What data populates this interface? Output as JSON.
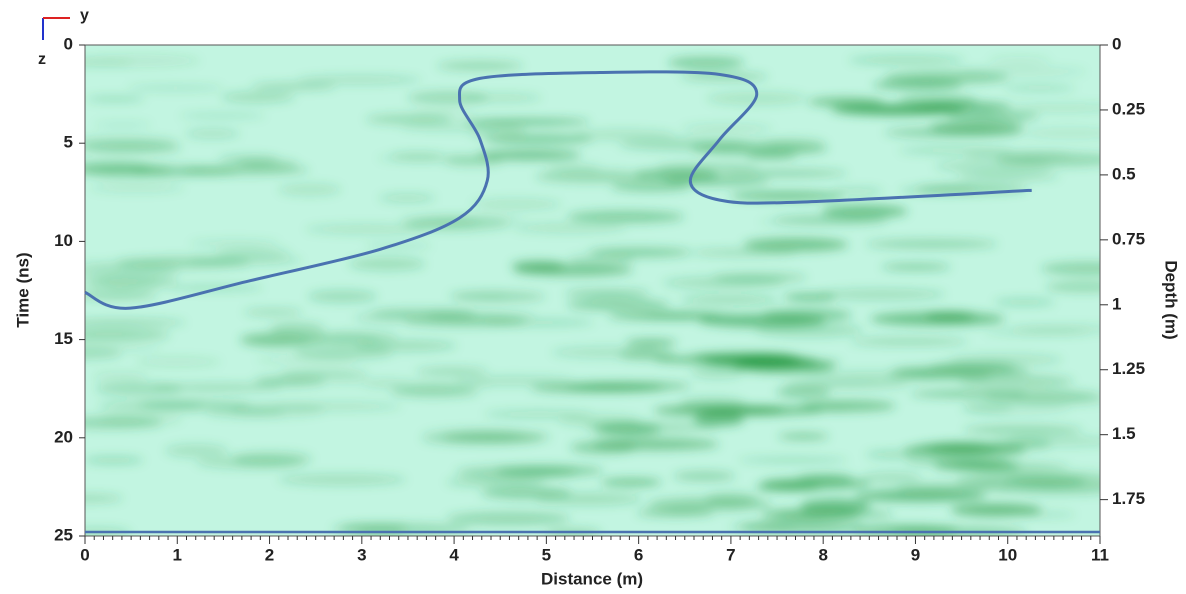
{
  "chart_data": {
    "type": "line",
    "orientation_labels": [
      "y",
      "z"
    ],
    "xlabel": "Distance (m)",
    "ylabel": "Time (ns)",
    "y2label": "Depth (m)",
    "xlim": [
      0,
      11
    ],
    "xticks": [
      0,
      1,
      2,
      3,
      4,
      5,
      6,
      7,
      8,
      9,
      10,
      11
    ],
    "ylim": [
      25,
      0
    ],
    "yticks": [
      0,
      5,
      10,
      15,
      20,
      25
    ],
    "y2lim": [
      1.89,
      0
    ],
    "y2ticks": [
      0,
      0.25,
      0.5,
      0.75,
      1,
      1.25,
      1.5,
      1.75
    ],
    "series": [
      {
        "color": "#4a72b0",
        "x": [
          0,
          0.49,
          1.79,
          3.2,
          4.06,
          4.36,
          4.28,
          4.06,
          4.28,
          5.58,
          6.88,
          7.28,
          6.88,
          6.56,
          6.88,
          7.75,
          10.26
        ],
        "values": [
          12.6,
          13.4,
          12.0,
          10.4,
          8.8,
          6.9,
          4.8,
          2.8,
          1.7,
          1.4,
          1.5,
          2.5,
          4.8,
          6.9,
          7.9,
          8.0,
          7.4
        ]
      }
    ]
  }
}
